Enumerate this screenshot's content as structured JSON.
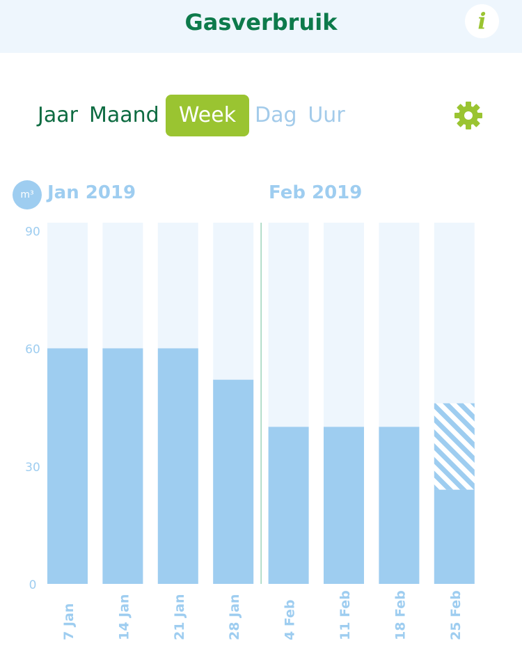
{
  "header": {
    "title": "Gasverbruik",
    "info_label": "i"
  },
  "tabs": [
    {
      "label": "Jaar"
    },
    {
      "label": "Maand"
    },
    {
      "label": "Week"
    },
    {
      "label": "Dag"
    },
    {
      "label": "Uur"
    }
  ],
  "active_tab": "Week",
  "colors": {
    "brand_green": "#0d7a4b",
    "accent_green": "#9ac431",
    "bar_blue": "#9ecdf0",
    "bar_bg": "#eef6fd"
  },
  "icons": {
    "settings": "gear-icon",
    "info": "info-icon"
  },
  "chart_data": {
    "type": "bar",
    "unit": "m³",
    "month_labels": [
      "Jan 2019",
      "Feb 2019"
    ],
    "categories": [
      "7 Jan",
      "14 Jan",
      "21 Jan",
      "28 Jan",
      "4 Feb",
      "11 Feb",
      "18 Feb",
      "25 Feb"
    ],
    "series": [
      {
        "values": [
          60,
          60,
          60,
          52,
          40,
          40,
          40,
          24
        ]
      },
      {
        "values": [
          null,
          null,
          null,
          null,
          null,
          null,
          null,
          22
        ],
        "style": "hatched"
      }
    ],
    "yticks": [
      0,
      30,
      60,
      90
    ],
    "ylim": [
      0,
      92
    ],
    "grid": false
  }
}
